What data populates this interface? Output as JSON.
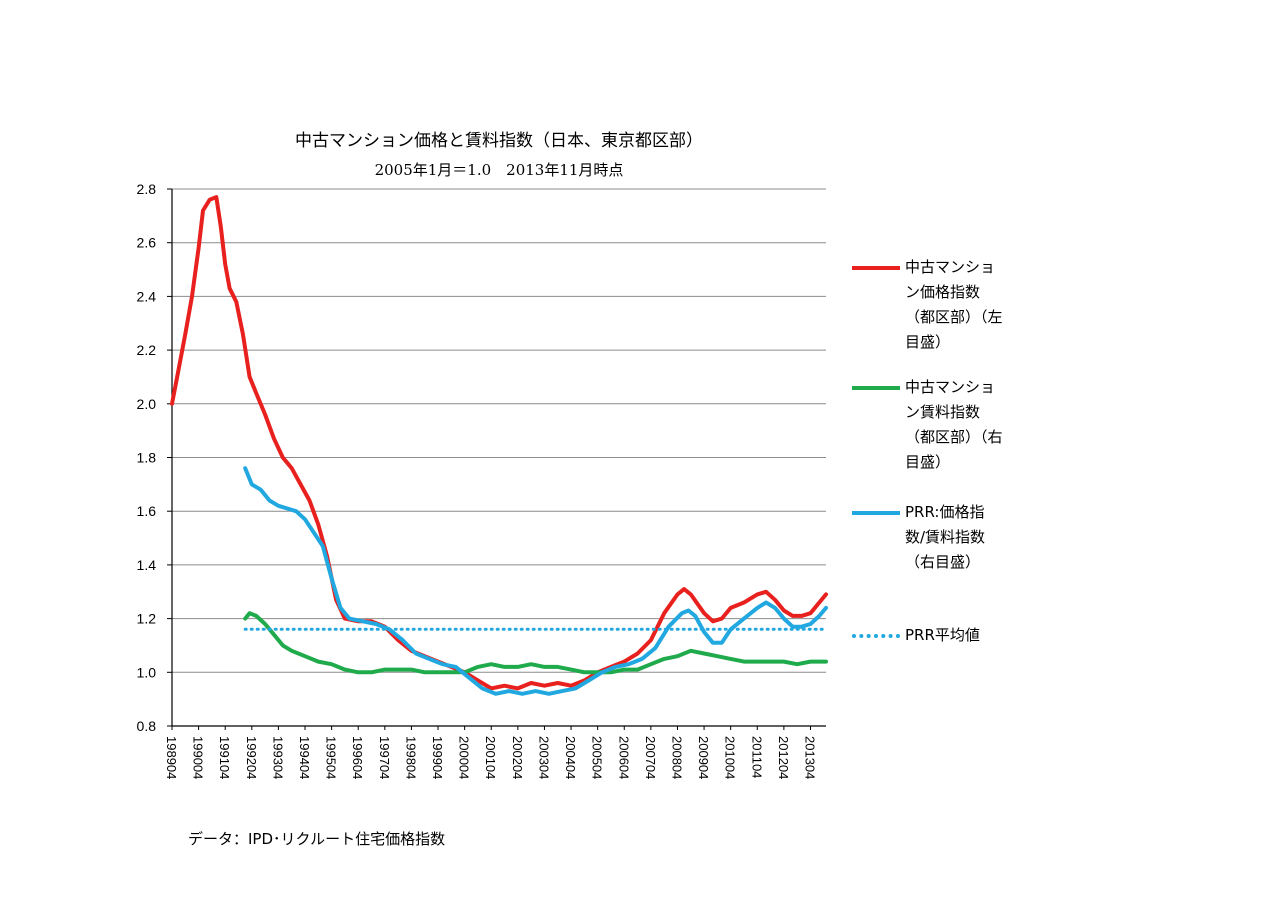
{
  "chart_data": {
    "type": "line",
    "title": "中古マンション価格と賃料指数（日本、東京都区部）",
    "subtitle": "2005年1月＝1.0　2013年11月時点",
    "ylim": [
      0.8,
      2.8
    ],
    "yticks": [
      "2.8",
      "2.6",
      "2.4",
      "2.2",
      "2.0",
      "1.8",
      "1.6",
      "1.4",
      "1.2",
      "1.0",
      "0.8"
    ],
    "grid": true,
    "legend_position": "right",
    "x_start": "1989-04",
    "x_end": "2013-11",
    "xticks": [
      "198904",
      "199004",
      "199104",
      "199204",
      "199304",
      "199404",
      "199504",
      "199604",
      "199704",
      "199804",
      "199904",
      "200004",
      "200104",
      "200204",
      "200304",
      "200404",
      "200504",
      "200604",
      "200704",
      "200804",
      "200904",
      "201004",
      "201104",
      "201204",
      "201304"
    ],
    "series": [
      {
        "name": "中古マンション価格指数（都区部）（左目盛）",
        "color": "#e8201e",
        "style": "solid",
        "points": [
          [
            "1989-04",
            2.0
          ],
          [
            "1989-07",
            2.13
          ],
          [
            "1989-10",
            2.26
          ],
          [
            "1990-01",
            2.4
          ],
          [
            "1990-04",
            2.58
          ],
          [
            "1990-06",
            2.72
          ],
          [
            "1990-09",
            2.76
          ],
          [
            "1990-12",
            2.77
          ],
          [
            "1991-02",
            2.66
          ],
          [
            "1991-04",
            2.52
          ],
          [
            "1991-06",
            2.43
          ],
          [
            "1991-09",
            2.38
          ],
          [
            "1991-12",
            2.26
          ],
          [
            "1992-03",
            2.1
          ],
          [
            "1992-06",
            2.04
          ],
          [
            "1992-10",
            1.96
          ],
          [
            "1993-02",
            1.87
          ],
          [
            "1993-06",
            1.8
          ],
          [
            "1993-10",
            1.76
          ],
          [
            "1994-02",
            1.7
          ],
          [
            "1994-06",
            1.64
          ],
          [
            "1994-10",
            1.55
          ],
          [
            "1995-02",
            1.43
          ],
          [
            "1995-06",
            1.27
          ],
          [
            "1995-10",
            1.2
          ],
          [
            "1996-04",
            1.19
          ],
          [
            "1996-10",
            1.19
          ],
          [
            "1997-04",
            1.17
          ],
          [
            "1997-10",
            1.12
          ],
          [
            "1998-04",
            1.08
          ],
          [
            "1998-10",
            1.06
          ],
          [
            "1999-04",
            1.04
          ],
          [
            "1999-10",
            1.02
          ],
          [
            "2000-04",
            1.0
          ],
          [
            "2000-10",
            0.97
          ],
          [
            "2001-04",
            0.94
          ],
          [
            "2001-10",
            0.95
          ],
          [
            "2002-04",
            0.94
          ],
          [
            "2002-10",
            0.96
          ],
          [
            "2003-04",
            0.95
          ],
          [
            "2003-10",
            0.96
          ],
          [
            "2004-04",
            0.95
          ],
          [
            "2004-10",
            0.97
          ],
          [
            "2005-04",
            1.0
          ],
          [
            "2005-10",
            1.02
          ],
          [
            "2006-04",
            1.04
          ],
          [
            "2006-10",
            1.07
          ],
          [
            "2007-04",
            1.12
          ],
          [
            "2007-10",
            1.22
          ],
          [
            "2008-04",
            1.29
          ],
          [
            "2008-07",
            1.31
          ],
          [
            "2008-10",
            1.29
          ],
          [
            "2009-04",
            1.22
          ],
          [
            "2009-08",
            1.19
          ],
          [
            "2009-12",
            1.2
          ],
          [
            "2010-04",
            1.24
          ],
          [
            "2010-10",
            1.26
          ],
          [
            "2011-04",
            1.29
          ],
          [
            "2011-08",
            1.3
          ],
          [
            "2011-12",
            1.27
          ],
          [
            "2012-04",
            1.23
          ],
          [
            "2012-08",
            1.21
          ],
          [
            "2012-12",
            1.21
          ],
          [
            "2013-04",
            1.22
          ],
          [
            "2013-08",
            1.26
          ],
          [
            "2013-11",
            1.29
          ]
        ]
      },
      {
        "name": "中古マンション賃料指数（都区部）（右目盛）",
        "color": "#1faa4c",
        "style": "solid",
        "points": [
          [
            "1992-01",
            1.2
          ],
          [
            "1992-03",
            1.22
          ],
          [
            "1992-06",
            1.21
          ],
          [
            "1992-10",
            1.18
          ],
          [
            "1993-02",
            1.14
          ],
          [
            "1993-06",
            1.1
          ],
          [
            "1993-10",
            1.08
          ],
          [
            "1994-04",
            1.06
          ],
          [
            "1994-10",
            1.04
          ],
          [
            "1995-04",
            1.03
          ],
          [
            "1995-10",
            1.01
          ],
          [
            "1996-04",
            1.0
          ],
          [
            "1996-10",
            1.0
          ],
          [
            "1997-04",
            1.01
          ],
          [
            "1997-10",
            1.01
          ],
          [
            "1998-04",
            1.01
          ],
          [
            "1998-10",
            1.0
          ],
          [
            "1999-04",
            1.0
          ],
          [
            "1999-10",
            1.0
          ],
          [
            "2000-04",
            1.0
          ],
          [
            "2000-10",
            1.02
          ],
          [
            "2001-04",
            1.03
          ],
          [
            "2001-10",
            1.02
          ],
          [
            "2002-04",
            1.02
          ],
          [
            "2002-10",
            1.03
          ],
          [
            "2003-04",
            1.02
          ],
          [
            "2003-10",
            1.02
          ],
          [
            "2004-04",
            1.01
          ],
          [
            "2004-10",
            1.0
          ],
          [
            "2005-04",
            1.0
          ],
          [
            "2005-10",
            1.0
          ],
          [
            "2006-04",
            1.01
          ],
          [
            "2006-10",
            1.01
          ],
          [
            "2007-04",
            1.03
          ],
          [
            "2007-10",
            1.05
          ],
          [
            "2008-04",
            1.06
          ],
          [
            "2008-10",
            1.08
          ],
          [
            "2009-04",
            1.07
          ],
          [
            "2009-10",
            1.06
          ],
          [
            "2010-04",
            1.05
          ],
          [
            "2010-10",
            1.04
          ],
          [
            "2011-04",
            1.04
          ],
          [
            "2011-10",
            1.04
          ],
          [
            "2012-04",
            1.04
          ],
          [
            "2012-10",
            1.03
          ],
          [
            "2013-04",
            1.04
          ],
          [
            "2013-11",
            1.04
          ]
        ]
      },
      {
        "name": "PRR:価格指数/賃料指数（右目盛）",
        "color": "#22a8e0",
        "style": "solid",
        "points": [
          [
            "1992-01",
            1.76
          ],
          [
            "1992-04",
            1.7
          ],
          [
            "1992-08",
            1.68
          ],
          [
            "1992-12",
            1.64
          ],
          [
            "1993-04",
            1.62
          ],
          [
            "1993-08",
            1.61
          ],
          [
            "1993-12",
            1.6
          ],
          [
            "1994-04",
            1.57
          ],
          [
            "1994-08",
            1.52
          ],
          [
            "1994-12",
            1.47
          ],
          [
            "1995-04",
            1.35
          ],
          [
            "1995-08",
            1.24
          ],
          [
            "1995-12",
            1.2
          ],
          [
            "1996-06",
            1.19
          ],
          [
            "1996-12",
            1.18
          ],
          [
            "1997-06",
            1.16
          ],
          [
            "1997-12",
            1.12
          ],
          [
            "1998-06",
            1.07
          ],
          [
            "1998-12",
            1.05
          ],
          [
            "1999-06",
            1.03
          ],
          [
            "1999-12",
            1.02
          ],
          [
            "2000-06",
            0.98
          ],
          [
            "2000-12",
            0.94
          ],
          [
            "2001-06",
            0.92
          ],
          [
            "2001-12",
            0.93
          ],
          [
            "2002-06",
            0.92
          ],
          [
            "2002-12",
            0.93
          ],
          [
            "2003-06",
            0.92
          ],
          [
            "2003-12",
            0.93
          ],
          [
            "2004-06",
            0.94
          ],
          [
            "2004-12",
            0.97
          ],
          [
            "2005-06",
            1.0
          ],
          [
            "2005-12",
            1.02
          ],
          [
            "2006-06",
            1.03
          ],
          [
            "2006-12",
            1.05
          ],
          [
            "2007-06",
            1.09
          ],
          [
            "2007-12",
            1.17
          ],
          [
            "2008-06",
            1.22
          ],
          [
            "2008-09",
            1.23
          ],
          [
            "2008-12",
            1.21
          ],
          [
            "2009-04",
            1.15
          ],
          [
            "2009-08",
            1.11
          ],
          [
            "2009-12",
            1.11
          ],
          [
            "2010-04",
            1.16
          ],
          [
            "2010-10",
            1.2
          ],
          [
            "2011-04",
            1.24
          ],
          [
            "2011-08",
            1.26
          ],
          [
            "2011-12",
            1.24
          ],
          [
            "2012-04",
            1.2
          ],
          [
            "2012-08",
            1.17
          ],
          [
            "2012-12",
            1.17
          ],
          [
            "2013-04",
            1.18
          ],
          [
            "2013-08",
            1.21
          ],
          [
            "2013-11",
            1.24
          ]
        ]
      },
      {
        "name": "PRR平均値",
        "color": "#22a8e0",
        "style": "dotted",
        "points": [
          [
            "1992-01",
            1.16
          ],
          [
            "2013-11",
            1.16
          ]
        ]
      }
    ]
  },
  "legend": [
    {
      "lines": [
        "中古マンショ",
        "ン価格指数",
        "（都区部）（左",
        "目盛）"
      ],
      "color": "#e8201e",
      "style": "solid"
    },
    {
      "lines": [
        "中古マンショ",
        "ン賃料指数",
        "（都区部）（右",
        "目盛）"
      ],
      "color": "#1faa4c",
      "style": "solid"
    },
    {
      "lines": [
        "PRR:価格指",
        "数/賃料指数",
        "（右目盛）"
      ],
      "color": "#22a8e0",
      "style": "solid"
    },
    {
      "lines": [
        "PRR平均値"
      ],
      "color": "#22a8e0",
      "style": "dotted"
    }
  ],
  "source_note": "データ：IPD･リクルート住宅価格指数"
}
